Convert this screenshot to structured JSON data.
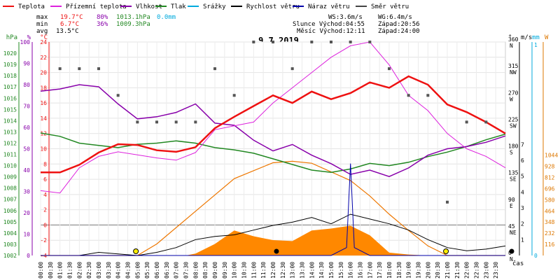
{
  "legend": [
    {
      "label": "Teplota",
      "color": "#ee1111"
    },
    {
      "label": "Přízemní teplota",
      "color": "#dd22dd"
    },
    {
      "label": "Vlhkost",
      "color": "#8800aa"
    },
    {
      "label": "Tlak",
      "color": "#228822"
    },
    {
      "label": "Srážky",
      "color": "#00aadd"
    },
    {
      "label": "Rychlost větru",
      "color": "#000000"
    },
    {
      "label": "Náraz větru",
      "color": "#0000aa"
    },
    {
      "label": "Směr větru",
      "color": "#444444"
    }
  ],
  "stats": {
    "max": {
      "label": "max",
      "temp": "19.7°C",
      "hum": "80%",
      "press": "1013.1hPa",
      "rain": "0.0mm"
    },
    "min": {
      "label": "min",
      "temp": "6.7°C",
      "hum": "36%",
      "press": "1009.3hPa"
    },
    "avg": {
      "label": "avg",
      "temp": "13.5°C"
    }
  },
  "wind_info": {
    "ws": "WS:3.6m/s",
    "wg": "WG:6.4m/s",
    "sun": "Slunce Východ:04:55",
    "sun_set": "Západ:20:56",
    "moon": "Měsíc Východ:12:11",
    "moon_set": "Západ:24:00"
  },
  "chart_data": {
    "type": "line",
    "title": "9.7.2019",
    "xlabel": "čas",
    "x_ticks": [
      "00:00",
      "00:30",
      "01:00",
      "01:30",
      "02:00",
      "02:30",
      "03:00",
      "03:30",
      "04:00",
      "04:30",
      "05:00",
      "05:30",
      "06:00",
      "06:30",
      "07:00",
      "07:30",
      "08:00",
      "08:30",
      "09:00",
      "09:30",
      "10:00",
      "10:30",
      "11:00",
      "11:30",
      "12:00",
      "12:30",
      "13:00",
      "13:30",
      "14:00",
      "14:30",
      "15:00",
      "15:30",
      "16:00",
      "16:30",
      "17:00",
      "17:30",
      "18:00",
      "18:30",
      "19:00",
      "19:30",
      "20:00",
      "20:30",
      "21:00",
      "21:30",
      "22:00",
      "22:30",
      "23:00",
      "23:30"
    ],
    "axes": {
      "hpa": {
        "unit": "hPa",
        "ticks": [
          "1002",
          "1003",
          "1004",
          "1005",
          "1006",
          "1007",
          "1008",
          "1009",
          "1010",
          "1011",
          "1012",
          "1013",
          "1014",
          "1015",
          "1016",
          "1017",
          "1018",
          "1019",
          "1020"
        ],
        "range": [
          1002,
          1021
        ]
      },
      "percent": {
        "unit": "%",
        "ticks": [
          "0",
          "10",
          "20",
          "30",
          "40",
          "50",
          "60",
          "70",
          "80",
          "90",
          "100"
        ],
        "range": [
          0,
          100
        ]
      },
      "celsius": {
        "unit": "°C",
        "ticks": [
          "-4",
          "-2",
          "0",
          "2",
          "4",
          "6",
          "8",
          "10",
          "12",
          "14",
          "16",
          "18",
          "20",
          "22",
          "24"
        ],
        "range": [
          -4,
          24
        ]
      },
      "direction": {
        "unit": "°",
        "ticks": [
          "0",
          "45",
          "90",
          "135",
          "180",
          "225",
          "270",
          "315",
          "360"
        ],
        "tick_labels2": [
          "N",
          "NE",
          "E",
          "SE",
          "S",
          "SW",
          "W",
          "NW",
          "N"
        ],
        "range": [
          0,
          360
        ]
      },
      "ms": {
        "unit": "m/s",
        "ticks": [
          "0",
          "1",
          "2",
          "3",
          "4",
          "5",
          "6",
          "7"
        ],
        "range": [
          0,
          7
        ]
      },
      "mm": {
        "unit": "mm",
        "ticks": [
          "0",
          "1"
        ]
      },
      "wm2": {
        "unit": "W",
        "ticks": [
          "0",
          "116",
          "232",
          "348",
          "464",
          "580",
          "696",
          "812",
          "928",
          "1044"
        ],
        "range": [
          0,
          1044
        ]
      }
    },
    "series": [
      {
        "name": "Teplota",
        "axis": "celsius",
        "x": [
          0,
          1,
          2,
          3,
          4,
          5,
          6,
          7,
          8,
          9,
          10,
          11,
          12,
          13,
          14,
          15,
          16,
          17,
          18,
          19,
          20,
          21,
          22,
          23,
          24
        ],
        "values": [
          6.9,
          6.9,
          7.9,
          9.5,
          10.6,
          10.5,
          9.8,
          9.6,
          10.2,
          12.7,
          14.2,
          15.6,
          17.0,
          16.0,
          17.5,
          16.5,
          17.3,
          18.7,
          18.0,
          19.5,
          18.4,
          15.8,
          14.8,
          13.5,
          12.0
        ]
      },
      {
        "name": "Přízemní teplota",
        "axis": "celsius",
        "x": [
          0,
          1,
          2,
          3,
          4,
          5,
          6,
          7,
          8,
          9,
          10,
          11,
          12,
          13,
          14,
          15,
          16,
          17,
          18,
          19,
          20,
          21,
          22,
          23,
          24
        ],
        "values": [
          4.5,
          4.2,
          7.5,
          9.0,
          9.6,
          9.2,
          8.8,
          8.5,
          9.5,
          12.5,
          13.0,
          13.5,
          16.0,
          18.0,
          20.0,
          22.0,
          23.5,
          24.0,
          21.0,
          17.0,
          15.0,
          12.0,
          10.0,
          9.0,
          7.5
        ]
      },
      {
        "name": "Vlhkost",
        "axis": "percent",
        "x": [
          0,
          1,
          2,
          3,
          4,
          5,
          6,
          7,
          8,
          9,
          10,
          11,
          12,
          13,
          14,
          15,
          16,
          17,
          18,
          19,
          20,
          21,
          22,
          23,
          24
        ],
        "values": [
          77,
          78,
          80,
          79,
          71,
          64,
          65,
          67,
          71,
          62,
          61,
          54,
          49,
          52,
          47,
          43,
          38,
          40,
          37,
          41,
          47,
          50,
          51,
          53,
          56
        ]
      },
      {
        "name": "Tlak",
        "axis": "hpa",
        "x": [
          0,
          1,
          2,
          3,
          4,
          5,
          6,
          7,
          8,
          9,
          10,
          11,
          12,
          13,
          14,
          15,
          16,
          17,
          18,
          19,
          20,
          21,
          22,
          23,
          24
        ],
        "values": [
          1012.9,
          1012.6,
          1012.0,
          1011.8,
          1011.6,
          1011.9,
          1012.0,
          1012.2,
          1012.0,
          1011.6,
          1011.4,
          1011.1,
          1010.6,
          1010.1,
          1009.6,
          1009.4,
          1009.7,
          1010.2,
          1010.0,
          1010.3,
          1010.8,
          1011.2,
          1011.7,
          1012.3,
          1012.8
        ]
      },
      {
        "name": "Rychlost větru",
        "axis": "ms",
        "x": [
          0,
          1,
          2,
          3,
          4,
          5,
          6,
          7,
          8,
          9,
          10,
          11,
          12,
          13,
          14,
          15,
          16,
          17,
          18,
          19,
          20,
          21,
          22,
          23,
          24
        ],
        "values": [
          0,
          0,
          0,
          0.2,
          0.1,
          0,
          0.2,
          0.5,
          1.0,
          1.2,
          1.3,
          1.6,
          1.9,
          2.1,
          2.4,
          2.0,
          2.6,
          2.3,
          2.0,
          1.6,
          1.0,
          0.5,
          0.3,
          0.4,
          0.6
        ]
      },
      {
        "name": "Náraz větru",
        "axis": "ms",
        "x": [
          0,
          4,
          8,
          12,
          13,
          14,
          15,
          15.8,
          16,
          16.2,
          17,
          18,
          20,
          24
        ],
        "values": [
          0,
          0,
          0,
          0,
          0,
          0,
          0,
          0.5,
          5.8,
          0.5,
          0,
          0,
          0,
          0
        ]
      },
      {
        "name": "Sluneční záření",
        "axis": "wm2",
        "x": [
          0,
          5,
          6,
          8,
          10,
          12,
          13,
          14,
          16,
          17,
          18,
          19,
          20,
          21,
          24
        ],
        "values": [
          0,
          0,
          120,
          460,
          800,
          965,
          980,
          960,
          780,
          620,
          430,
          260,
          100,
          0,
          0
        ]
      },
      {
        "name": "Intenzita",
        "axis": "wm2",
        "x": [
          0,
          7.5,
          8,
          9,
          10,
          11,
          12,
          13,
          14,
          15,
          16,
          17,
          18,
          19,
          20,
          24
        ],
        "values": [
          0,
          0,
          20,
          120,
          260,
          200,
          160,
          150,
          260,
          280,
          310,
          210,
          30,
          10,
          0,
          0
        ]
      }
    ],
    "wind_direction_points": {
      "axis": "direction",
      "x": [
        1,
        2,
        3,
        4,
        5,
        6,
        7,
        8,
        9,
        10,
        11,
        12,
        13,
        14,
        15,
        16,
        17,
        18,
        19,
        20,
        21,
        22,
        23
      ],
      "values": [
        315,
        315,
        315,
        270,
        225,
        225,
        225,
        225,
        315,
        270,
        360,
        360,
        315,
        360,
        360,
        360,
        360,
        315,
        270,
        270,
        90,
        225,
        225
      ]
    }
  }
}
